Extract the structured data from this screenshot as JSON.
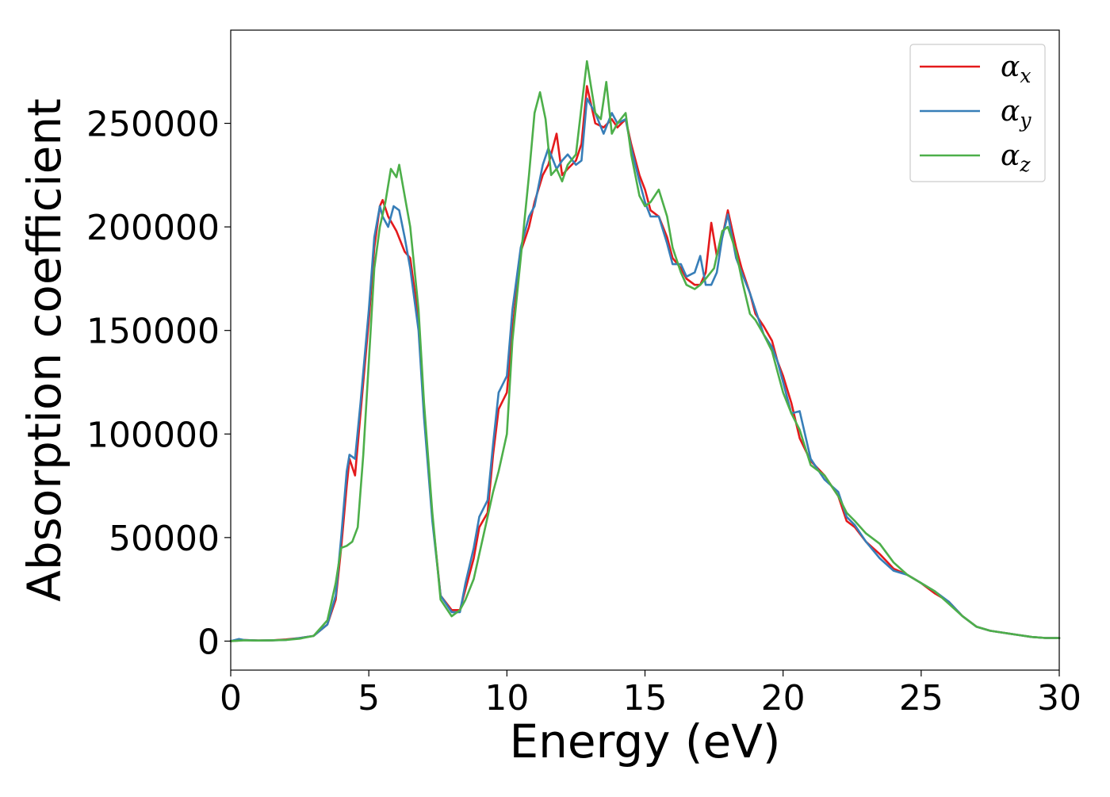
{
  "chart_data": {
    "type": "line",
    "title": "",
    "xlabel": "Energy (eV)",
    "ylabel": "Absorption coefficient",
    "xlim": [
      0,
      30
    ],
    "ylim": [
      -14000,
      295000
    ],
    "xticks": [
      0,
      5,
      10,
      15,
      20,
      25,
      30
    ],
    "yticks": [
      0,
      50000,
      100000,
      150000,
      200000,
      250000
    ],
    "xtick_labels": [
      "0",
      "5",
      "10",
      "15",
      "20",
      "25",
      "30"
    ],
    "ytick_labels": [
      "0",
      "50000",
      "100000",
      "150000",
      "200000",
      "250000"
    ],
    "grid": false,
    "legend_position": "top-right",
    "series": [
      {
        "name": "αx",
        "symbol": "α",
        "subscript": "x",
        "color": "#e41a1c",
        "points": [
          [
            0,
            0
          ],
          [
            0.5,
            500
          ],
          [
            1,
            300
          ],
          [
            1.5,
            400
          ],
          [
            2,
            800
          ],
          [
            2.5,
            1500
          ],
          [
            3,
            2500
          ],
          [
            3.5,
            8000
          ],
          [
            3.8,
            20000
          ],
          [
            4,
            45000
          ],
          [
            4.2,
            75000
          ],
          [
            4.3,
            88000
          ],
          [
            4.5,
            80000
          ],
          [
            4.7,
            110000
          ],
          [
            5,
            155000
          ],
          [
            5.2,
            190000
          ],
          [
            5.4,
            210000
          ],
          [
            5.5,
            213000
          ],
          [
            5.7,
            205000
          ],
          [
            6,
            198000
          ],
          [
            6.3,
            188000
          ],
          [
            6.5,
            185000
          ],
          [
            6.8,
            155000
          ],
          [
            7,
            110000
          ],
          [
            7.3,
            60000
          ],
          [
            7.6,
            22000
          ],
          [
            8,
            15000
          ],
          [
            8.3,
            15000
          ],
          [
            8.5,
            25000
          ],
          [
            8.8,
            40000
          ],
          [
            9,
            55000
          ],
          [
            9.3,
            62000
          ],
          [
            9.5,
            90000
          ],
          [
            9.7,
            112000
          ],
          [
            10,
            120000
          ],
          [
            10.2,
            150000
          ],
          [
            10.5,
            188000
          ],
          [
            10.8,
            200000
          ],
          [
            11,
            212000
          ],
          [
            11.3,
            225000
          ],
          [
            11.5,
            230000
          ],
          [
            11.8,
            245000
          ],
          [
            12,
            225000
          ],
          [
            12.2,
            228000
          ],
          [
            12.5,
            232000
          ],
          [
            12.7,
            240000
          ],
          [
            12.9,
            268000
          ],
          [
            13.2,
            250000
          ],
          [
            13.5,
            248000
          ],
          [
            13.8,
            252000
          ],
          [
            14,
            248000
          ],
          [
            14.3,
            252000
          ],
          [
            14.5,
            240000
          ],
          [
            14.8,
            225000
          ],
          [
            15,
            218000
          ],
          [
            15.2,
            208000
          ],
          [
            15.5,
            205000
          ],
          [
            15.8,
            195000
          ],
          [
            16,
            185000
          ],
          [
            16.3,
            180000
          ],
          [
            16.5,
            175000
          ],
          [
            16.8,
            172000
          ],
          [
            17,
            172000
          ],
          [
            17.2,
            178000
          ],
          [
            17.4,
            202000
          ],
          [
            17.6,
            186000
          ],
          [
            17.8,
            195000
          ],
          [
            18,
            208000
          ],
          [
            18.3,
            190000
          ],
          [
            18.5,
            180000
          ],
          [
            18.8,
            168000
          ],
          [
            19,
            158000
          ],
          [
            19.3,
            152000
          ],
          [
            19.6,
            145000
          ],
          [
            19.8,
            135000
          ],
          [
            20,
            128000
          ],
          [
            20.3,
            115000
          ],
          [
            20.6,
            98000
          ],
          [
            21,
            87000
          ],
          [
            21.5,
            80000
          ],
          [
            22,
            70000
          ],
          [
            22.3,
            58000
          ],
          [
            22.6,
            55000
          ],
          [
            23,
            48000
          ],
          [
            23.5,
            42000
          ],
          [
            24,
            35000
          ],
          [
            24.5,
            32000
          ],
          [
            25,
            28000
          ],
          [
            25.5,
            23000
          ],
          [
            26,
            19000
          ],
          [
            26.5,
            12000
          ],
          [
            27,
            7000
          ],
          [
            27.5,
            5000
          ],
          [
            28,
            4000
          ],
          [
            28.5,
            3000
          ],
          [
            29,
            2000
          ],
          [
            29.5,
            1500
          ],
          [
            30,
            1500
          ]
        ]
      },
      {
        "name": "αy",
        "symbol": "α",
        "subscript": "y",
        "color": "#377eb8",
        "points": [
          [
            0,
            0
          ],
          [
            0.3,
            1000
          ],
          [
            0.5,
            500
          ],
          [
            1,
            300
          ],
          [
            1.5,
            400
          ],
          [
            2,
            600
          ],
          [
            2.5,
            1500
          ],
          [
            3,
            2500
          ],
          [
            3.5,
            8000
          ],
          [
            3.8,
            22000
          ],
          [
            4,
            50000
          ],
          [
            4.2,
            82000
          ],
          [
            4.3,
            90000
          ],
          [
            4.5,
            88000
          ],
          [
            4.7,
            115000
          ],
          [
            5,
            160000
          ],
          [
            5.2,
            195000
          ],
          [
            5.4,
            210000
          ],
          [
            5.5,
            205000
          ],
          [
            5.7,
            200000
          ],
          [
            5.9,
            210000
          ],
          [
            6.1,
            208000
          ],
          [
            6.3,
            195000
          ],
          [
            6.5,
            180000
          ],
          [
            6.8,
            150000
          ],
          [
            7,
            108000
          ],
          [
            7.3,
            58000
          ],
          [
            7.6,
            22000
          ],
          [
            8,
            14000
          ],
          [
            8.3,
            14000
          ],
          [
            8.5,
            28000
          ],
          [
            8.8,
            45000
          ],
          [
            9,
            60000
          ],
          [
            9.3,
            68000
          ],
          [
            9.5,
            95000
          ],
          [
            9.7,
            120000
          ],
          [
            10,
            128000
          ],
          [
            10.2,
            160000
          ],
          [
            10.5,
            190000
          ],
          [
            10.8,
            205000
          ],
          [
            11,
            210000
          ],
          [
            11.3,
            230000
          ],
          [
            11.5,
            238000
          ],
          [
            11.8,
            228000
          ],
          [
            12,
            232000
          ],
          [
            12.2,
            235000
          ],
          [
            12.5,
            230000
          ],
          [
            12.7,
            232000
          ],
          [
            12.9,
            262000
          ],
          [
            13.2,
            255000
          ],
          [
            13.5,
            245000
          ],
          [
            13.8,
            255000
          ],
          [
            14,
            250000
          ],
          [
            14.3,
            252000
          ],
          [
            14.5,
            238000
          ],
          [
            14.8,
            222000
          ],
          [
            15,
            212000
          ],
          [
            15.2,
            205000
          ],
          [
            15.5,
            205000
          ],
          [
            15.8,
            192000
          ],
          [
            16,
            182000
          ],
          [
            16.3,
            182000
          ],
          [
            16.5,
            176000
          ],
          [
            16.8,
            178000
          ],
          [
            17,
            186000
          ],
          [
            17.2,
            172000
          ],
          [
            17.4,
            172000
          ],
          [
            17.6,
            178000
          ],
          [
            17.8,
            195000
          ],
          [
            18,
            206000
          ],
          [
            18.3,
            185000
          ],
          [
            18.5,
            178000
          ],
          [
            18.8,
            168000
          ],
          [
            19,
            160000
          ],
          [
            19.3,
            148000
          ],
          [
            19.6,
            142000
          ],
          [
            19.8,
            135000
          ],
          [
            20,
            125000
          ],
          [
            20.3,
            110000
          ],
          [
            20.6,
            111000
          ],
          [
            21,
            88000
          ],
          [
            21.5,
            78000
          ],
          [
            22,
            72000
          ],
          [
            22.3,
            60000
          ],
          [
            22.6,
            56000
          ],
          [
            23,
            48000
          ],
          [
            23.5,
            40000
          ],
          [
            24,
            34000
          ],
          [
            24.5,
            32000
          ],
          [
            25,
            28000
          ],
          [
            25.5,
            24000
          ],
          [
            26,
            19000
          ],
          [
            26.5,
            12000
          ],
          [
            27,
            7000
          ],
          [
            27.5,
            5000
          ],
          [
            28,
            4000
          ],
          [
            28.5,
            3000
          ],
          [
            29,
            2000
          ],
          [
            29.5,
            1500
          ],
          [
            30,
            1500
          ]
        ]
      },
      {
        "name": "αz",
        "symbol": "α",
        "subscript": "z",
        "color": "#4daf4a",
        "points": [
          [
            0,
            0
          ],
          [
            0.5,
            400
          ],
          [
            1,
            300
          ],
          [
            1.5,
            400
          ],
          [
            2,
            600
          ],
          [
            2.5,
            1200
          ],
          [
            3,
            2500
          ],
          [
            3.5,
            10000
          ],
          [
            3.8,
            28000
          ],
          [
            4,
            45000
          ],
          [
            4.2,
            46000
          ],
          [
            4.4,
            48000
          ],
          [
            4.6,
            55000
          ],
          [
            4.8,
            90000
          ],
          [
            5,
            135000
          ],
          [
            5.2,
            180000
          ],
          [
            5.4,
            200000
          ],
          [
            5.6,
            212000
          ],
          [
            5.8,
            228000
          ],
          [
            6,
            224000
          ],
          [
            6.1,
            230000
          ],
          [
            6.3,
            215000
          ],
          [
            6.5,
            200000
          ],
          [
            6.8,
            160000
          ],
          [
            7,
            115000
          ],
          [
            7.3,
            62000
          ],
          [
            7.6,
            20000
          ],
          [
            8,
            12000
          ],
          [
            8.3,
            15000
          ],
          [
            8.5,
            20000
          ],
          [
            8.8,
            30000
          ],
          [
            9,
            42000
          ],
          [
            9.3,
            60000
          ],
          [
            9.5,
            72000
          ],
          [
            9.7,
            82000
          ],
          [
            10,
            100000
          ],
          [
            10.2,
            145000
          ],
          [
            10.5,
            185000
          ],
          [
            10.8,
            225000
          ],
          [
            11,
            255000
          ],
          [
            11.2,
            265000
          ],
          [
            11.4,
            252000
          ],
          [
            11.6,
            225000
          ],
          [
            11.8,
            228000
          ],
          [
            12,
            222000
          ],
          [
            12.2,
            230000
          ],
          [
            12.5,
            235000
          ],
          [
            12.7,
            258000
          ],
          [
            12.9,
            280000
          ],
          [
            13.2,
            255000
          ],
          [
            13.4,
            252000
          ],
          [
            13.6,
            270000
          ],
          [
            13.8,
            245000
          ],
          [
            14,
            250000
          ],
          [
            14.3,
            255000
          ],
          [
            14.5,
            235000
          ],
          [
            14.8,
            215000
          ],
          [
            15,
            210000
          ],
          [
            15.2,
            212000
          ],
          [
            15.5,
            218000
          ],
          [
            15.8,
            205000
          ],
          [
            16,
            190000
          ],
          [
            16.3,
            178000
          ],
          [
            16.5,
            172000
          ],
          [
            16.8,
            170000
          ],
          [
            17,
            172000
          ],
          [
            17.2,
            175000
          ],
          [
            17.5,
            180000
          ],
          [
            17.8,
            198000
          ],
          [
            18,
            200000
          ],
          [
            18.3,
            188000
          ],
          [
            18.5,
            175000
          ],
          [
            18.8,
            158000
          ],
          [
            19,
            155000
          ],
          [
            19.3,
            148000
          ],
          [
            19.6,
            140000
          ],
          [
            19.8,
            130000
          ],
          [
            20,
            120000
          ],
          [
            20.3,
            110000
          ],
          [
            20.6,
            102000
          ],
          [
            21,
            85000
          ],
          [
            21.5,
            80000
          ],
          [
            22,
            70000
          ],
          [
            22.3,
            62000
          ],
          [
            22.6,
            58000
          ],
          [
            23,
            52000
          ],
          [
            23.5,
            47000
          ],
          [
            24,
            38000
          ],
          [
            24.5,
            32000
          ],
          [
            25,
            28000
          ],
          [
            25.5,
            24000
          ],
          [
            26,
            18000
          ],
          [
            26.5,
            12000
          ],
          [
            27,
            7000
          ],
          [
            27.5,
            5000
          ],
          [
            28,
            4000
          ],
          [
            28.5,
            3000
          ],
          [
            29,
            2000
          ],
          [
            29.5,
            1500
          ],
          [
            30,
            1500
          ]
        ]
      }
    ]
  }
}
